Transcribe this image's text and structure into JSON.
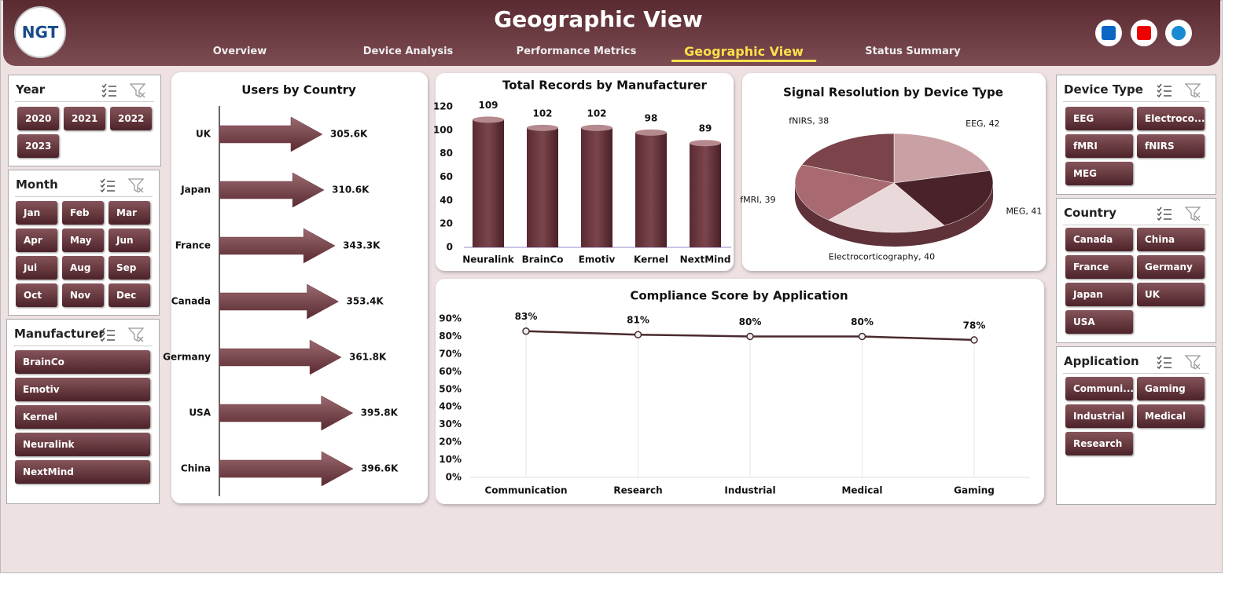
{
  "header": {
    "logo": "NGT",
    "title": "Geographic View",
    "tabs": [
      "Overview",
      "Device Analysis",
      "Performance Metrics",
      "Geographic View",
      "Status Summary"
    ],
    "active_tab": 3
  },
  "slicers": [
    {
      "title": "Year",
      "items": [
        "2020",
        "2021",
        "2022",
        "2023"
      ]
    },
    {
      "title": "Month",
      "items": [
        "Jan",
        "Feb",
        "Mar",
        "Apr",
        "May",
        "Jun",
        "Jul",
        "Aug",
        "Sep",
        "Oct",
        "Nov",
        "Dec"
      ]
    },
    {
      "title": "Manufacturer",
      "items": [
        "BrainCo",
        "Emotiv",
        "Kernel",
        "Neuralink",
        "NextMind"
      ]
    },
    {
      "title": "Device Type",
      "items": [
        "EEG",
        "Electroco...",
        "fMRI",
        "fNIRS",
        "MEG"
      ]
    },
    {
      "title": "Country",
      "items": [
        "Canada",
        "China",
        "France",
        "Germany",
        "Japan",
        "UK",
        "USA"
      ]
    },
    {
      "title": "Application",
      "items": [
        "Communi...",
        "Gaming",
        "Industrial",
        "Medical",
        "Research"
      ]
    }
  ],
  "chart_data": [
    {
      "type": "arrow-bar",
      "title": "Users by Country",
      "categories": [
        "UK",
        "Japan",
        "France",
        "Canada",
        "Germany",
        "USA",
        "China"
      ],
      "values": [
        305600,
        310600,
        343300,
        353400,
        361800,
        395800,
        396600
      ],
      "value_labels": [
        "305.6K",
        "310.6K",
        "343.3K",
        "353.4K",
        "361.8K",
        "395.8K",
        "396.6K"
      ],
      "color": "#6b363d"
    },
    {
      "type": "bar",
      "title": "Total Records by Manufacturer",
      "categories": [
        "Neuralink",
        "BrainCo",
        "Emotiv",
        "Kernel",
        "NextMind"
      ],
      "values": [
        109,
        102,
        102,
        98,
        89
      ],
      "ylim": [
        0,
        120
      ],
      "yticks": [
        0,
        20,
        40,
        60,
        80,
        100,
        120
      ],
      "color": "#6b363d"
    },
    {
      "type": "pie",
      "title": "Signal Resolution  by Device Type",
      "categories": [
        "EEG",
        "MEG",
        "Electrocorticography",
        "fMRI",
        "fNIRS"
      ],
      "values": [
        42,
        41,
        40,
        39,
        38
      ],
      "colors": [
        "#c9a0a3",
        "#4a2229",
        "#ead9da",
        "#a86a70",
        "#7a444a"
      ]
    },
    {
      "type": "line",
      "title": "Compliance Score by Application",
      "categories": [
        "Communication",
        "Research",
        "Industrial",
        "Medical",
        "Gaming"
      ],
      "values": [
        83,
        81,
        80,
        80,
        78
      ],
      "value_labels": [
        "83%",
        "81%",
        "80%",
        "80%",
        "78%"
      ],
      "ylim": [
        0,
        90
      ],
      "yticks": [
        {
          "value": 0,
          "label": "0%"
        },
        {
          "value": 10,
          "label": "10%"
        },
        {
          "value": 20,
          "label": "20%"
        },
        {
          "value": 30,
          "label": "30%"
        },
        {
          "value": 40,
          "label": "40%"
        },
        {
          "value": 50,
          "label": "50%"
        },
        {
          "value": 60,
          "label": "60%"
        },
        {
          "value": 70,
          "label": "70%"
        },
        {
          "value": 80,
          "label": "80%"
        },
        {
          "value": 90,
          "label": "90%"
        }
      ],
      "color": "#4a2a2e",
      "grid": true
    }
  ]
}
